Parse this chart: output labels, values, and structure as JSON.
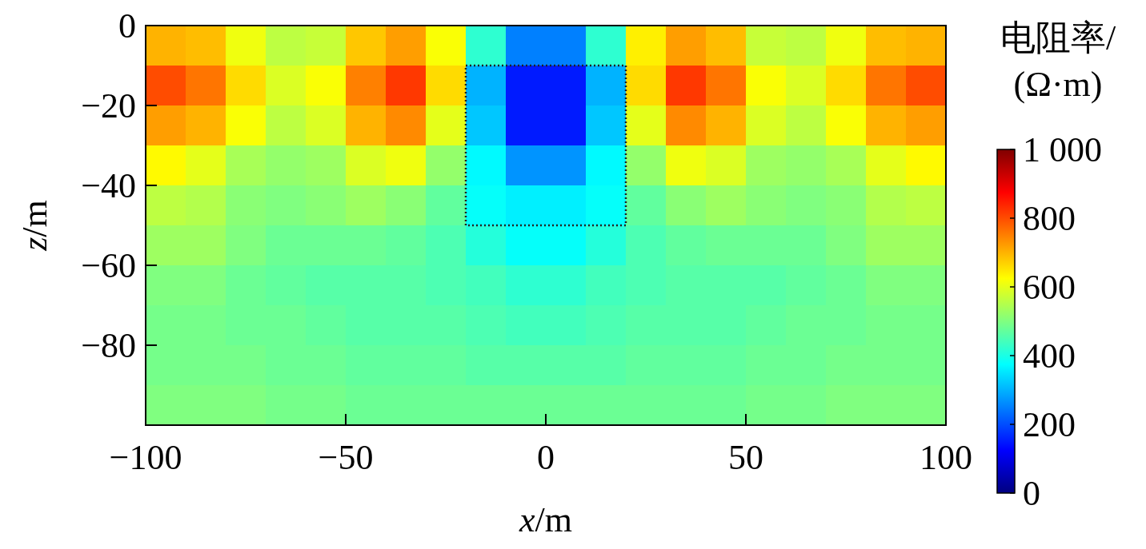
{
  "chart_data": {
    "type": "heatmap",
    "xlabel": "x/m",
    "ylabel": "z/m",
    "clabel": "电阻率/\n(Ω·m)",
    "x": [
      -95,
      -85,
      -75,
      -65,
      -55,
      -45,
      -35,
      -25,
      -15,
      -5,
      5,
      15,
      25,
      35,
      45,
      55,
      65,
      75,
      85,
      95
    ],
    "y": [
      -5,
      -15,
      -25,
      -35,
      -45,
      -55,
      -65,
      -75,
      -85,
      -95
    ],
    "xlim": [
      -100,
      100
    ],
    "xticks": [
      {
        "value": -100,
        "label": "−100"
      },
      {
        "value": -50,
        "label": "−50"
      },
      0,
      50,
      100
    ],
    "ylim": [
      -100,
      0
    ],
    "yticks": [
      0,
      {
        "value": -20,
        "label": "−20"
      },
      {
        "value": -40,
        "label": "−40"
      },
      {
        "value": -60,
        "label": "−60"
      },
      {
        "value": -80,
        "label": "−80"
      }
    ],
    "clim": [
      0,
      1000
    ],
    "cticks": [
      0,
      200,
      400,
      600,
      800,
      {
        "value": 1000,
        "label": "1 000"
      }
    ],
    "cells": [
      [
        700,
        690,
        610,
        560,
        570,
        680,
        720,
        620,
        420,
        250,
        250,
        420,
        640,
        720,
        690,
        570,
        560,
        610,
        690,
        700
      ],
      [
        800,
        760,
        660,
        590,
        620,
        750,
        820,
        660,
        300,
        150,
        150,
        300,
        660,
        820,
        760,
        620,
        590,
        660,
        760,
        800
      ],
      [
        720,
        700,
        620,
        560,
        590,
        700,
        740,
        600,
        320,
        150,
        150,
        320,
        600,
        740,
        700,
        590,
        560,
        620,
        700,
        720
      ],
      [
        630,
        600,
        540,
        520,
        530,
        590,
        610,
        520,
        370,
        270,
        270,
        370,
        520,
        610,
        590,
        530,
        520,
        540,
        600,
        630
      ],
      [
        560,
        550,
        510,
        500,
        510,
        530,
        510,
        470,
        380,
        360,
        360,
        380,
        470,
        510,
        530,
        510,
        500,
        510,
        550,
        560
      ],
      [
        530,
        530,
        500,
        480,
        480,
        480,
        470,
        450,
        410,
        380,
        380,
        410,
        450,
        470,
        480,
        480,
        480,
        500,
        530,
        530
      ],
      [
        500,
        500,
        480,
        470,
        460,
        460,
        460,
        450,
        440,
        420,
        420,
        440,
        450,
        460,
        460,
        460,
        470,
        480,
        500,
        500
      ],
      [
        490,
        490,
        480,
        480,
        470,
        460,
        460,
        460,
        450,
        440,
        440,
        450,
        460,
        460,
        460,
        470,
        480,
        480,
        490,
        490
      ],
      [
        490,
        490,
        490,
        480,
        480,
        470,
        470,
        470,
        460,
        460,
        460,
        460,
        470,
        470,
        470,
        480,
        480,
        490,
        490,
        490
      ],
      [
        500,
        500,
        500,
        490,
        490,
        480,
        480,
        480,
        480,
        480,
        480,
        480,
        480,
        480,
        480,
        490,
        490,
        500,
        500,
        500
      ]
    ]
  }
}
